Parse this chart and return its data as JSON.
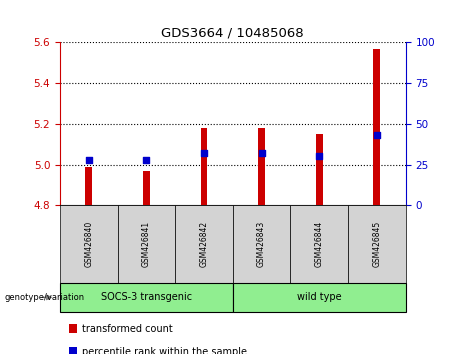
{
  "title": "GDS3664 / 10485068",
  "samples": [
    "GSM426840",
    "GSM426841",
    "GSM426842",
    "GSM426843",
    "GSM426844",
    "GSM426845"
  ],
  "transformed_counts": [
    4.99,
    4.97,
    5.18,
    5.18,
    5.15,
    5.57
  ],
  "percentile_ranks": [
    28,
    28,
    32,
    32,
    30,
    43
  ],
  "ylim_left": [
    4.8,
    5.6
  ],
  "ylim_right": [
    0,
    100
  ],
  "yticks_left": [
    4.8,
    5.0,
    5.2,
    5.4,
    5.6
  ],
  "yticks_right": [
    0,
    25,
    50,
    75,
    100
  ],
  "groups": [
    {
      "label": "SOCS-3 transgenic",
      "indices": [
        0,
        1,
        2
      ]
    },
    {
      "label": "wild type",
      "indices": [
        3,
        4,
        5
      ]
    }
  ],
  "bar_color": "#CC0000",
  "dot_color": "#0000CC",
  "bar_bottom": 4.8,
  "legend_items": [
    {
      "label": "transformed count",
      "color": "#CC0000"
    },
    {
      "label": "percentile rank within the sample",
      "color": "#0000CC"
    }
  ],
  "group_row_color": "#90EE90",
  "sample_row_color": "#d3d3d3",
  "left_axis_color": "#CC0000",
  "right_axis_color": "#0000CC"
}
